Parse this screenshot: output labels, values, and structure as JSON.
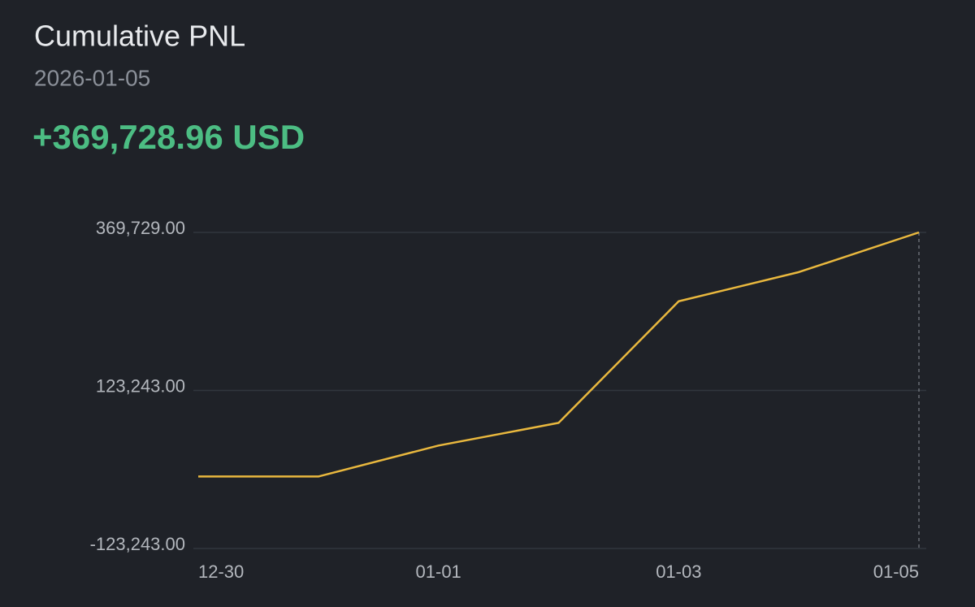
{
  "chart_data": {
    "type": "line",
    "title": "Cumulative PNL",
    "subtitle": "2026-01-05",
    "headline": "+369,728.96 USD",
    "categories": [
      "12-30",
      null,
      "01-01",
      null,
      "01-03",
      null,
      "01-05"
    ],
    "series": [
      {
        "name": "Cumulative PNL",
        "color": "#e9b83e",
        "values": [
          -11000,
          -11000,
          37300,
          72700,
          262300,
          307800,
          369728.96
        ]
      }
    ],
    "ylim": [
      -123243,
      369729
    ],
    "yticks": [
      {
        "value": -123243,
        "label": "-123,243.00"
      },
      {
        "value": 123243,
        "label": "123,243.00"
      },
      {
        "value": 369729,
        "label": "369,729.00"
      }
    ],
    "grid": true
  }
}
